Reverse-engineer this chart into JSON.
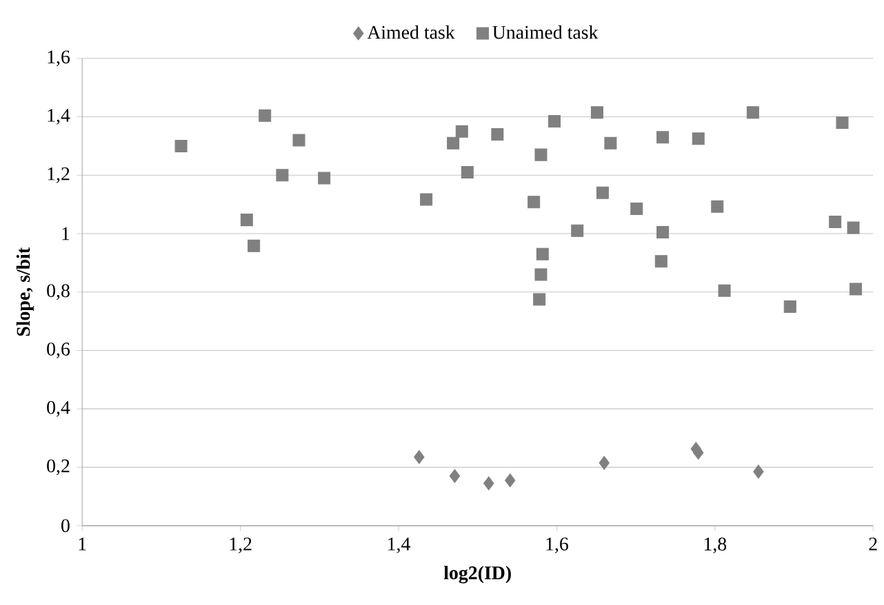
{
  "chart_data": {
    "type": "scatter",
    "xlabel": "log2(ID)",
    "ylabel": "Slope, s/bit",
    "xlim": [
      1,
      2
    ],
    "ylim": [
      0,
      1.6
    ],
    "xticks": [
      {
        "value": 1,
        "label": "1"
      },
      {
        "value": 1.2,
        "label": "1,2"
      },
      {
        "value": 1.4,
        "label": "1,4"
      },
      {
        "value": 1.6,
        "label": "1,6"
      },
      {
        "value": 1.8,
        "label": "1,8"
      },
      {
        "value": 2,
        "label": "2"
      }
    ],
    "yticks": [
      {
        "value": 0,
        "label": "0"
      },
      {
        "value": 0.2,
        "label": "0,2"
      },
      {
        "value": 0.4,
        "label": "0,4"
      },
      {
        "value": 0.6,
        "label": "0,6"
      },
      {
        "value": 0.8,
        "label": "0,8"
      },
      {
        "value": 1,
        "label": "1"
      },
      {
        "value": 1.2,
        "label": "1,2"
      },
      {
        "value": 1.4,
        "label": "1,4"
      },
      {
        "value": 1.6,
        "label": "1,6"
      }
    ],
    "grid": "y",
    "legend": "top",
    "series": [
      {
        "name": "Aimed task",
        "color": "#808080",
        "marker": "diamond",
        "x": [
          1.426,
          1.471,
          1.514,
          1.541,
          1.66,
          1.776,
          1.779,
          1.855
        ],
        "values": [
          0.235,
          0.17,
          0.145,
          0.155,
          0.215,
          0.263,
          0.25,
          0.185
        ]
      },
      {
        "name": "Unaimed task",
        "color": "#808080",
        "marker": "square",
        "x": [
          1.125,
          1.208,
          1.217,
          1.231,
          1.253,
          1.274,
          1.306,
          1.435,
          1.469,
          1.48,
          1.487,
          1.525,
          1.571,
          1.58,
          1.582,
          1.58,
          1.578,
          1.597,
          1.626,
          1.651,
          1.658,
          1.668,
          1.701,
          1.734,
          1.734,
          1.732,
          1.779,
          1.803,
          1.812,
          1.848,
          1.895,
          1.952,
          1.961,
          1.975,
          1.978
        ],
        "values": [
          1.3,
          1.047,
          0.958,
          1.404,
          1.2,
          1.32,
          1.19,
          1.117,
          1.31,
          1.35,
          1.21,
          1.34,
          1.108,
          1.27,
          0.93,
          0.86,
          0.775,
          1.385,
          1.01,
          1.415,
          1.14,
          1.31,
          1.085,
          1.33,
          1.005,
          0.905,
          1.325,
          1.093,
          0.805,
          1.415,
          0.75,
          1.04,
          1.38,
          1.02,
          0.81
        ]
      }
    ]
  }
}
